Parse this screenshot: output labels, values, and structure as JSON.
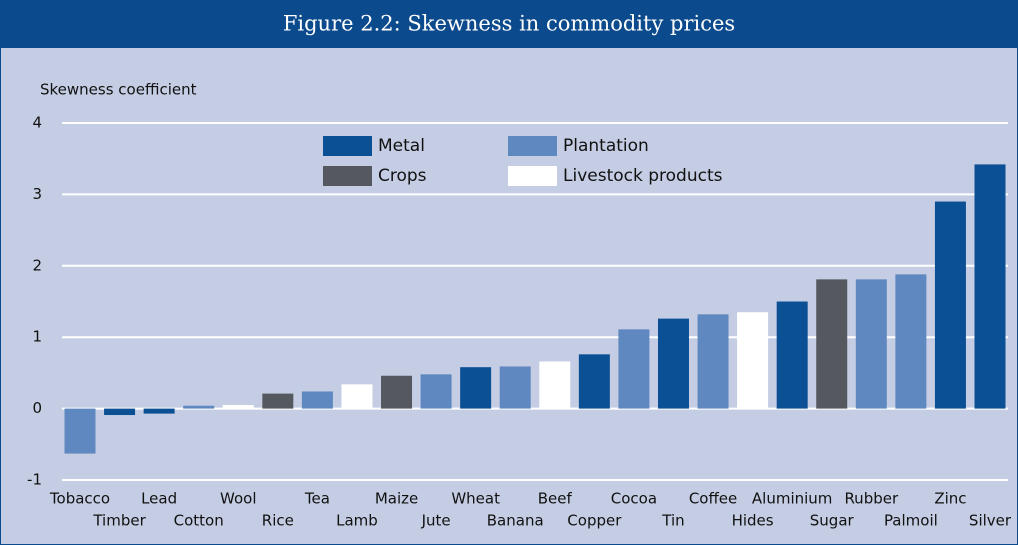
{
  "chart_data": {
    "type": "bar",
    "title": "Figure 2.2: Skewness in commodity prices",
    "y_label": "Skewness coefficient",
    "categories": [
      "Tobacco",
      "Timber",
      "Lead",
      "Cotton",
      "Wool",
      "Rice",
      "Tea",
      "Lamb",
      "Maize",
      "Jute",
      "Wheat",
      "Banana",
      "Beef",
      "Copper",
      "Cocoa",
      "Tin",
      "Coffee",
      "Hides",
      "Aluminium",
      "Sugar",
      "Rubber",
      "Palmoil",
      "Zinc",
      "Silver"
    ],
    "series": [
      {
        "name": "Metal",
        "color": "#0b4f94",
        "values": [
          null,
          -0.09,
          -0.07,
          null,
          null,
          null,
          null,
          null,
          null,
          null,
          0.58,
          null,
          null,
          0.76,
          null,
          1.26,
          null,
          null,
          1.5,
          null,
          null,
          null,
          2.9,
          3.42
        ]
      },
      {
        "name": "Plantation",
        "color": "#6088c0",
        "values": [
          -0.63,
          null,
          null,
          0.04,
          null,
          null,
          0.24,
          null,
          null,
          0.48,
          null,
          0.59,
          null,
          null,
          1.11,
          null,
          1.32,
          null,
          null,
          null,
          1.81,
          1.88,
          null,
          null
        ]
      },
      {
        "name": "Crops",
        "color": "#55595f",
        "values": [
          null,
          null,
          null,
          null,
          null,
          0.21,
          null,
          null,
          0.46,
          null,
          null,
          null,
          null,
          null,
          null,
          null,
          null,
          null,
          null,
          1.81,
          null,
          null,
          null,
          null
        ]
      },
      {
        "name": "Livestock products",
        "color": "#ffffff",
        "values": [
          null,
          null,
          null,
          null,
          0.05,
          null,
          null,
          0.34,
          null,
          null,
          null,
          null,
          0.66,
          null,
          null,
          null,
          null,
          1.35,
          null,
          null,
          null,
          null,
          null,
          null
        ]
      }
    ],
    "ylim": [
      -1,
      4
    ],
    "yticks": [
      -1,
      0,
      1,
      2,
      3,
      4
    ],
    "grid": true
  }
}
